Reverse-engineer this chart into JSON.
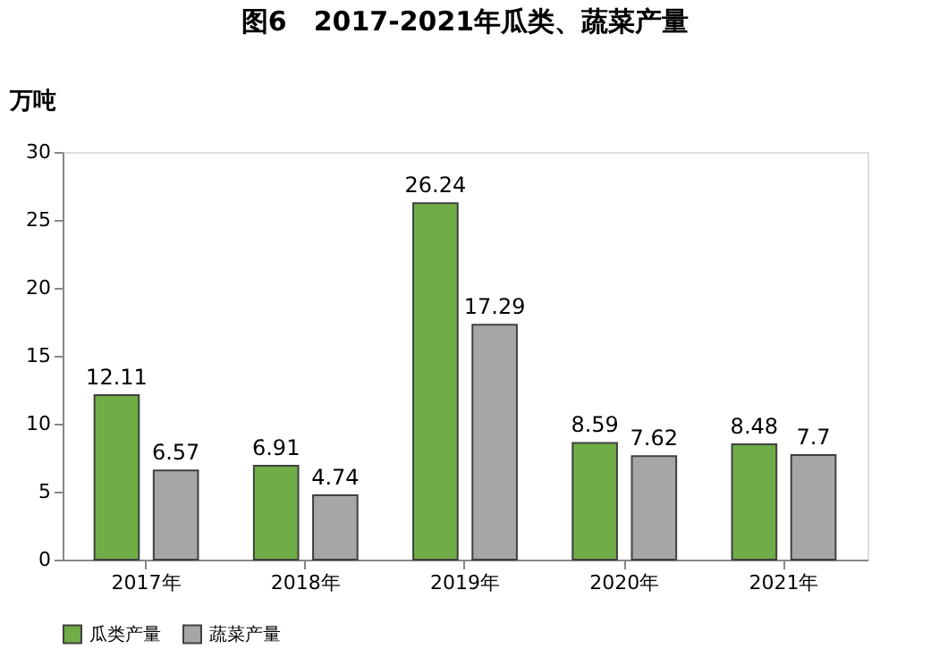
{
  "chart_data": {
    "type": "bar",
    "title": "图6　2017-2021年瓜类、蔬菜产量",
    "ylabel": "万吨",
    "categories": [
      "2017年",
      "2018年",
      "2019年",
      "2020年",
      "2021年"
    ],
    "series": [
      {
        "name": "瓜类产量",
        "color": "#70ad47",
        "values": [
          12.11,
          6.91,
          26.24,
          8.59,
          8.48
        ]
      },
      {
        "name": "蔬菜产量",
        "color": "#a6a6a6",
        "values": [
          6.57,
          4.74,
          17.29,
          7.62,
          7.7
        ]
      }
    ],
    "ylim": [
      0,
      30
    ],
    "yticks": [
      0,
      5,
      10,
      15,
      20,
      25,
      30
    ],
    "grid": false,
    "legend": "bottom",
    "data_labels": true
  }
}
